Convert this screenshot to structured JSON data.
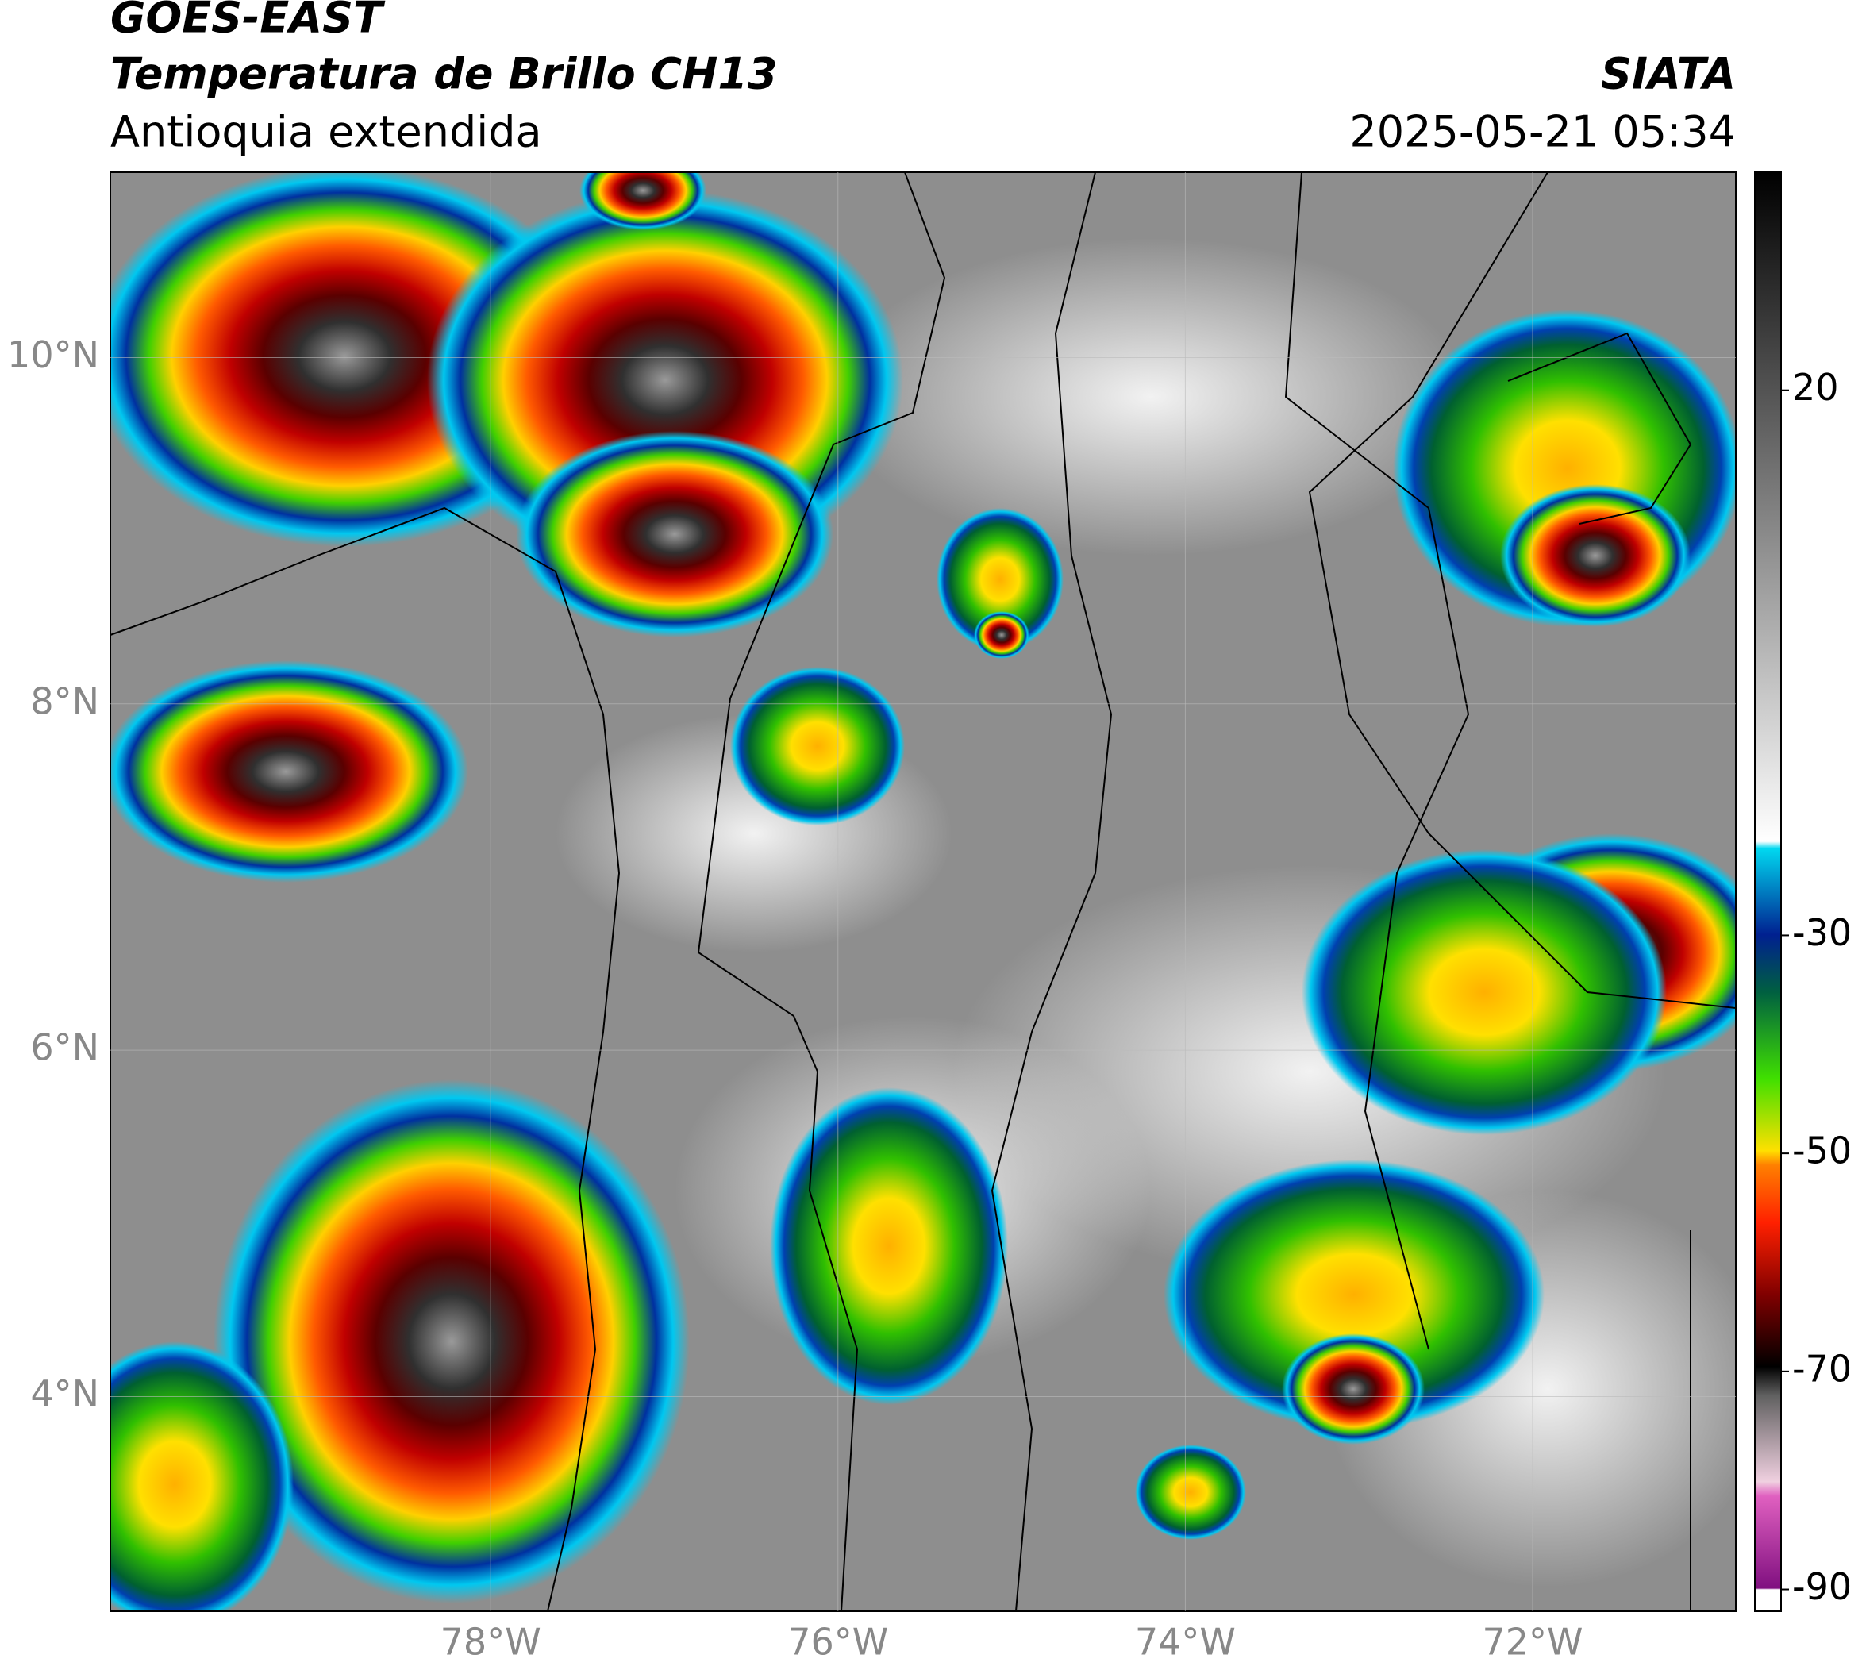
{
  "header": {
    "title_line1": "GOES-EAST",
    "title_line2": "Temperatura de Brillo CH13",
    "subtitle": "Antioquia extendida",
    "agency": "SIATA",
    "datetime": "2025-05-21 05:34"
  },
  "map": {
    "xlim": [
      -80.19,
      -70.83
    ],
    "ylim": [
      2.76,
      11.07
    ],
    "xticks": [
      {
        "value": -78,
        "label": "78°W"
      },
      {
        "value": -76,
        "label": "76°W"
      },
      {
        "value": -74,
        "label": "74°W"
      },
      {
        "value": -72,
        "label": "72°W"
      }
    ],
    "yticks": [
      {
        "value": 4,
        "label": "4°N"
      },
      {
        "value": 6,
        "label": "6°N"
      },
      {
        "value": 8,
        "label": "8°N"
      },
      {
        "value": 10,
        "label": "10°N"
      }
    ]
  },
  "colorbar": {
    "lim": [
      -92,
      40
    ],
    "ticks": [
      -90,
      -70,
      -50,
      -30,
      20
    ]
  }
}
